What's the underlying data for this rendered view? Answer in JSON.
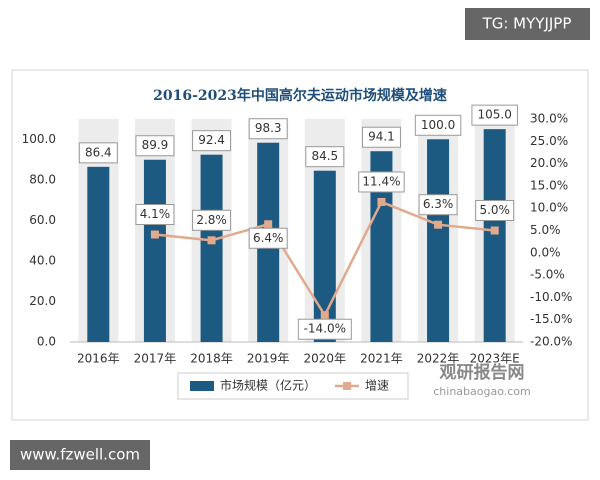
{
  "chart_data": {
    "type": "bar",
    "title": "2016-2023年中国高尔夫运动市场规模及增速",
    "categories": [
      "2016年",
      "2017年",
      "2018年",
      "2019年",
      "2020年",
      "2021年",
      "2022年",
      "2023年E"
    ],
    "series": [
      {
        "name": "市场规模（亿元）",
        "type": "bar",
        "color": "#1d5a82",
        "values": [
          86.4,
          89.9,
          92.4,
          98.3,
          84.5,
          94.1,
          100.0,
          105.0
        ],
        "value_labels": [
          "86.4",
          "89.9",
          "92.4",
          "98.3",
          "84.5",
          "94.1",
          "100.0",
          "105.0"
        ]
      },
      {
        "name": "增速",
        "type": "line",
        "axis": "y2",
        "color": "#e2a98c",
        "values": [
          null,
          4.1,
          2.8,
          6.4,
          -14.0,
          11.4,
          6.3,
          5.0
        ],
        "value_labels": [
          null,
          "4.1%",
          "2.8%",
          "6.4%",
          "-14.0%",
          "11.4%",
          "6.3%",
          "5.0%"
        ]
      }
    ],
    "ylim": [
      0,
      110
    ],
    "yticks": [
      {
        "value": 0,
        "label": "0.0"
      },
      {
        "value": 20,
        "label": "20.0"
      },
      {
        "value": 40,
        "label": "40.0"
      },
      {
        "value": 60,
        "label": "60.0"
      },
      {
        "value": 80,
        "label": "80.0"
      },
      {
        "value": 100,
        "label": "100.0"
      }
    ],
    "y2lim": [
      -20,
      30
    ],
    "y2ticks": [
      {
        "value": -20,
        "label": "-20.0%"
      },
      {
        "value": -15,
        "label": "-15.0%"
      },
      {
        "value": -10,
        "label": "-10.0%"
      },
      {
        "value": -5,
        "label": "-5.0%"
      },
      {
        "value": 0,
        "label": "0.0%"
      },
      {
        "value": 5,
        "label": "5.0%"
      },
      {
        "value": 10,
        "label": "10.0%"
      },
      {
        "value": 15,
        "label": "15.0%"
      },
      {
        "value": 20,
        "label": "20.0%"
      },
      {
        "value": 25,
        "label": "25.0%"
      },
      {
        "value": 30,
        "label": "30.0%"
      }
    ],
    "grid": false
  },
  "watermarks": {
    "top_right": "TG: MYYJJPP",
    "bottom_left": "www.fzwell.com",
    "logo": "观研报告网",
    "logo_url": "chinabaogao.com"
  }
}
